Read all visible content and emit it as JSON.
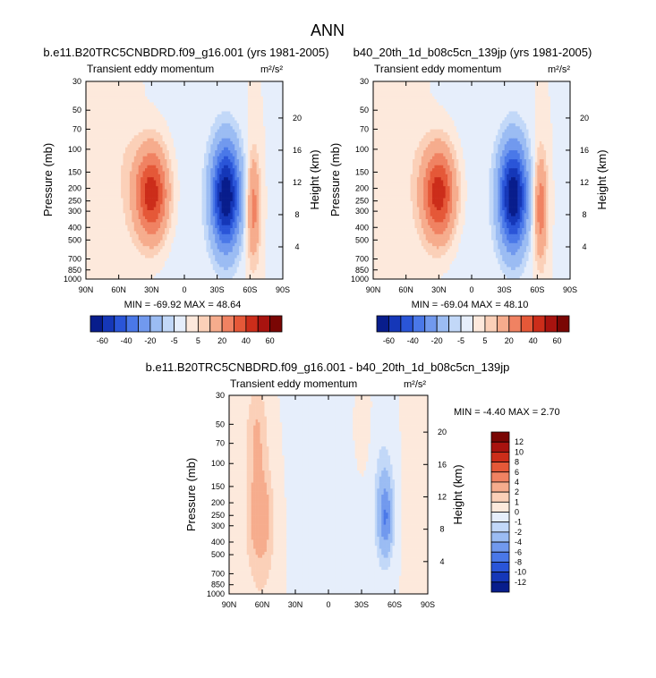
{
  "figure": {
    "title": "ANN"
  },
  "palettes": {
    "main": [
      "#081d8c",
      "#1537b8",
      "#2a55d8",
      "#4a78e8",
      "#7199ee",
      "#9bbcf3",
      "#c2d8f8",
      "#e6eefb",
      "#fde9dc",
      "#fbd0b8",
      "#f6ac8d",
      "#f08262",
      "#e55838",
      "#cc2d1a",
      "#a8130f",
      "#7a0604"
    ],
    "diff": [
      "#081d8c",
      "#1537b8",
      "#2a55d8",
      "#4a78e8",
      "#7199ee",
      "#9bbcf3",
      "#c2d8f8",
      "#e6eefb",
      "#fde9dc",
      "#fbd0b8",
      "#f6ac8d",
      "#f08262",
      "#e55838",
      "#cc2d1a",
      "#a8130f",
      "#7a0604"
    ]
  },
  "chart_data": [
    {
      "id": "left",
      "type": "heatmap",
      "title": "b.e11.B20TRC5CNBDRD.f09_g16.001 (yrs 1981-2005)",
      "subtitle": "Transient eddy momentum",
      "units": "m²/s²",
      "ylabel": "Pressure (mb)",
      "y2label": "Height (km)",
      "xticks": [
        "90N",
        "60N",
        "30N",
        "0",
        "30S",
        "60S",
        "90S"
      ],
      "yticks": [
        "30",
        "50",
        "70",
        "100",
        "150",
        "200",
        "250",
        "300",
        "400",
        "500",
        "700",
        "850",
        "1000"
      ],
      "y2ticks": [
        "20",
        "16",
        "12",
        "8",
        "4"
      ],
      "min_max_label": "MIN = -69.92  MAX = 48.64",
      "extrema": {
        "min": -69.92,
        "max": 48.64
      },
      "features": [
        {
          "lat": 30,
          "p": 220,
          "value": 48.6,
          "width_deg": 15,
          "height_dec": 0.35
        },
        {
          "lat": -38,
          "p": 230,
          "value": -69.9,
          "width_deg": 13,
          "height_dec": 0.4
        },
        {
          "lat": -63,
          "p": 280,
          "value": 25,
          "width_deg": 6,
          "height_dec": 0.4
        },
        {
          "lat": 57,
          "p": 100,
          "value": 4,
          "width_deg": 14,
          "height_dec": 0.9
        },
        {
          "lat": 10,
          "p": 300,
          "value": -3,
          "width_deg": 30,
          "height_dec": 1.0
        },
        {
          "lat": -85,
          "p": 500,
          "value": -2,
          "width_deg": 8,
          "height_dec": 1.2
        }
      ],
      "colorbar": {
        "labels": [
          "-60",
          "-40",
          "-20",
          "-5",
          "5",
          "20",
          "40",
          "60"
        ]
      }
    },
    {
      "id": "right",
      "type": "heatmap",
      "title": "b40_20th_1d_b08c5cn_139jp (yrs 1981-2005)",
      "subtitle": "Transient eddy momentum",
      "units": "m²/s²",
      "ylabel": "Pressure (mb)",
      "y2label": "Height (km)",
      "xticks": [
        "90N",
        "60N",
        "30N",
        "0",
        "30S",
        "60S",
        "90S"
      ],
      "yticks": [
        "30",
        "50",
        "70",
        "100",
        "150",
        "200",
        "250",
        "300",
        "400",
        "500",
        "700",
        "850",
        "1000"
      ],
      "y2ticks": [
        "20",
        "16",
        "12",
        "8",
        "4"
      ],
      "min_max_label": "MIN = -69.04  MAX = 48.10",
      "extrema": {
        "min": -69.04,
        "max": 48.1
      },
      "features": [
        {
          "lat": 30,
          "p": 220,
          "value": 48.1,
          "width_deg": 15,
          "height_dec": 0.35
        },
        {
          "lat": -38,
          "p": 230,
          "value": -69.0,
          "width_deg": 13,
          "height_dec": 0.4
        },
        {
          "lat": -63,
          "p": 280,
          "value": 27,
          "width_deg": 6,
          "height_dec": 0.4
        },
        {
          "lat": 57,
          "p": 100,
          "value": 3,
          "width_deg": 14,
          "height_dec": 0.9
        },
        {
          "lat": 10,
          "p": 300,
          "value": -3,
          "width_deg": 30,
          "height_dec": 1.0
        },
        {
          "lat": -85,
          "p": 500,
          "value": -2,
          "width_deg": 8,
          "height_dec": 1.2
        }
      ],
      "colorbar": {
        "labels": [
          "-60",
          "-40",
          "-20",
          "-5",
          "5",
          "20",
          "40",
          "60"
        ]
      }
    },
    {
      "id": "diff",
      "type": "heatmap",
      "title": "b.e11.B20TRC5CNBDRD.f09_g16.001 - b40_20th_1d_b08c5cn_139jp",
      "subtitle": "Transient eddy momentum",
      "units": "m²/s²",
      "ylabel": "Pressure (mb)",
      "y2label": "Height (km)",
      "xticks": [
        "90N",
        "60N",
        "30N",
        "0",
        "30S",
        "60S",
        "90S"
      ],
      "yticks": [
        "30",
        "50",
        "70",
        "100",
        "150",
        "200",
        "250",
        "300",
        "400",
        "500",
        "700",
        "850",
        "1000"
      ],
      "y2ticks": [
        "20",
        "16",
        "12",
        "8",
        "4"
      ],
      "min_max_label": "MIN = -4.40  MAX =   2.70",
      "extrema": {
        "min": -4.4,
        "max": 2.7
      },
      "features": [
        {
          "lat": 65,
          "p": 60,
          "value": 1.8,
          "width_deg": 9,
          "height_dec": 0.4
        },
        {
          "lat": 62,
          "p": 260,
          "value": 2.7,
          "width_deg": 9,
          "height_dec": 0.3
        },
        {
          "lat": 60,
          "p": 400,
          "value": 1.2,
          "width_deg": 20,
          "height_dec": 0.9
        },
        {
          "lat": -52,
          "p": 260,
          "value": -4.4,
          "width_deg": 6,
          "height_dec": 0.25
        },
        {
          "lat": -50,
          "p": 200,
          "value": -2.0,
          "width_deg": 9,
          "height_dec": 0.5
        },
        {
          "lat": 10,
          "p": 250,
          "value": -0.6,
          "width_deg": 40,
          "height_dec": 1.2
        },
        {
          "lat": -80,
          "p": 200,
          "value": 0.6,
          "width_deg": 10,
          "height_dec": 1.2
        },
        {
          "lat": -30,
          "p": 60,
          "value": 0.4,
          "width_deg": 10,
          "height_dec": 0.4
        }
      ],
      "colorbar": {
        "labels": [
          "12",
          "10",
          "8",
          "6",
          "4",
          "2",
          "1",
          "0",
          "-1",
          "-2",
          "-4",
          "-6",
          "-8",
          "-10",
          "-12"
        ]
      }
    }
  ]
}
